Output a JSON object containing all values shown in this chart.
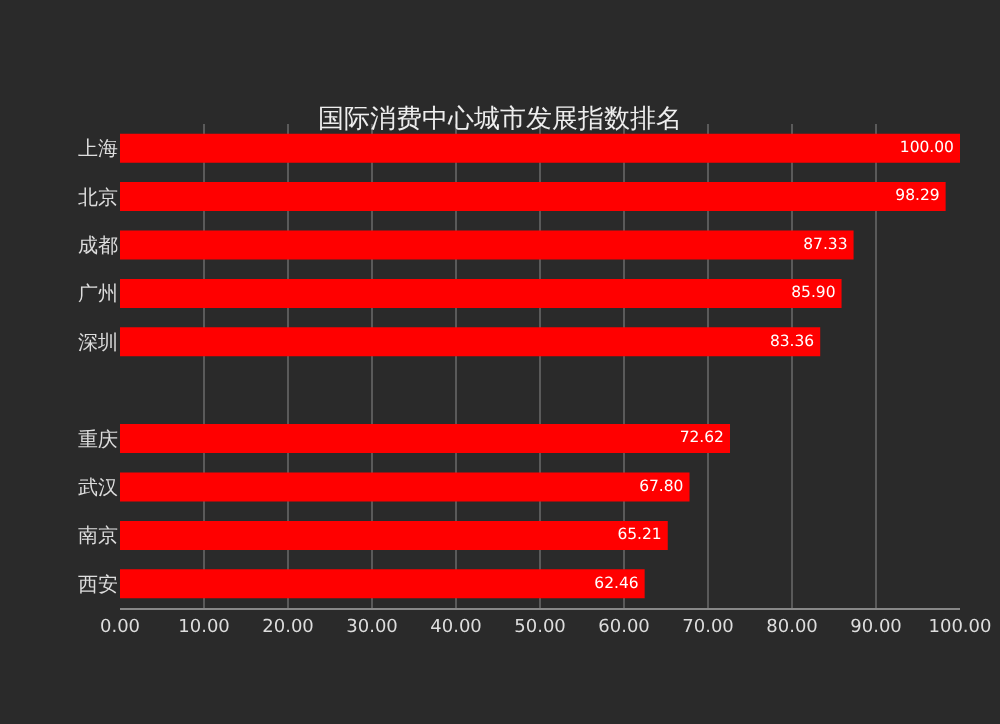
{
  "chart_data": {
    "type": "bar",
    "orientation": "horizontal",
    "title": "国际消费中心城市发展指数排名",
    "categories": [
      "上海",
      "北京",
      "成都",
      "广州",
      "深圳",
      null,
      "重庆",
      "武汉",
      "南京",
      "西安"
    ],
    "values": [
      100.0,
      98.29,
      87.33,
      85.9,
      83.36,
      null,
      72.62,
      67.8,
      65.21,
      62.46
    ],
    "value_labels": [
      "100.00",
      "98.29",
      "87.33",
      "85.90",
      "83.36",
      null,
      "72.62",
      "67.80",
      "65.21",
      "62.46"
    ],
    "color": "#ff0000",
    "xlim": [
      0,
      100
    ],
    "xticks": [
      {
        "value": 0,
        "label": "0.00"
      },
      {
        "value": 10,
        "label": "10.00"
      },
      {
        "value": 20,
        "label": "20.00"
      },
      {
        "value": 30,
        "label": "30.00"
      },
      {
        "value": 40,
        "label": "40.00"
      },
      {
        "value": 50,
        "label": "50.00"
      },
      {
        "value": 60,
        "label": "60.00"
      },
      {
        "value": 70,
        "label": "70.00"
      },
      {
        "value": 80,
        "label": "80.00"
      },
      {
        "value": 90,
        "label": "90.00"
      },
      {
        "value": 100,
        "label": "100.00"
      }
    ],
    "grid": "x"
  }
}
